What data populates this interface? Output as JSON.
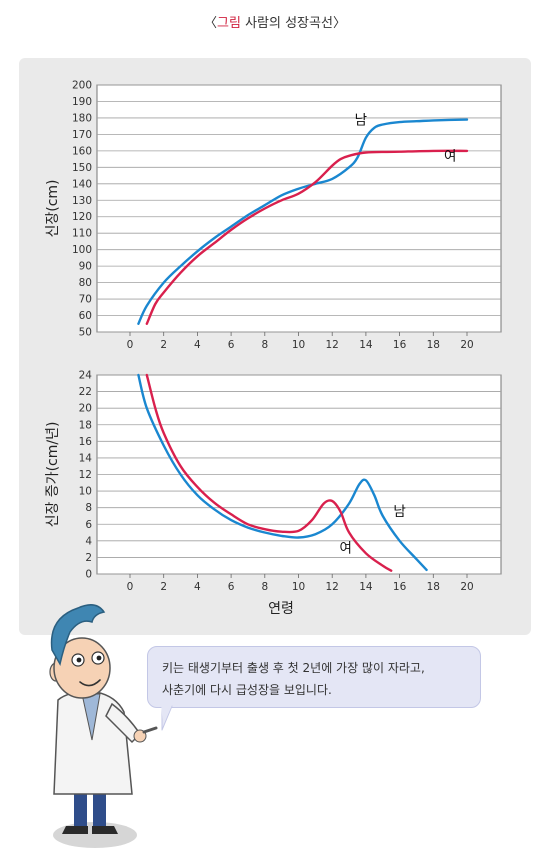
{
  "caption": {
    "bracket_open": "〈",
    "highlight": "그림",
    "rest": " 사람의 성장곡선",
    "bracket_close": "〉"
  },
  "speech": {
    "line1": "키는 태생기부터 출생 후 첫 2년에 가장 많이 자라고,",
    "line2": "사춘기에 다시 급성장을 보입니다."
  },
  "colors": {
    "male": "#1a87d0",
    "female": "#d9204d",
    "panel": "#eaeaea",
    "grid": "#a0a0a0"
  },
  "chart_data": [
    {
      "type": "line",
      "ylabel": "신장(cm)",
      "xlabel": "",
      "xlim": [
        0,
        20
      ],
      "ylim": [
        50,
        200
      ],
      "xticks": [
        0,
        2,
        4,
        6,
        8,
        10,
        12,
        14,
        16,
        18,
        20
      ],
      "yticks": [
        50,
        60,
        70,
        80,
        90,
        100,
        110,
        120,
        130,
        140,
        150,
        160,
        170,
        180,
        190,
        200
      ],
      "grid": true,
      "series": [
        {
          "name": "남",
          "color": "#1a87d0",
          "points": [
            [
              0.5,
              55
            ],
            [
              1,
              66
            ],
            [
              2,
              80
            ],
            [
              3,
              90
            ],
            [
              4,
              99
            ],
            [
              5,
              107
            ],
            [
              6,
              114
            ],
            [
              7,
              121
            ],
            [
              8,
              127
            ],
            [
              9,
              133
            ],
            [
              10,
              137
            ],
            [
              11,
              140
            ],
            [
              12,
              143
            ],
            [
              13,
              150
            ],
            [
              13.5,
              156
            ],
            [
              14,
              168
            ],
            [
              14.5,
              174
            ],
            [
              15,
              176
            ],
            [
              16,
              177.5
            ],
            [
              17,
              178
            ],
            [
              18,
              178.5
            ],
            [
              20,
              179
            ]
          ]
        },
        {
          "name": "여",
          "color": "#d9204d",
          "points": [
            [
              1,
              55
            ],
            [
              1.5,
              67
            ],
            [
              2,
              74
            ],
            [
              3,
              86
            ],
            [
              4,
              96
            ],
            [
              5,
              104
            ],
            [
              6,
              112
            ],
            [
              7,
              119
            ],
            [
              8,
              125
            ],
            [
              9,
              130
            ],
            [
              10,
              134
            ],
            [
              11,
              141
            ],
            [
              12,
              151
            ],
            [
              12.5,
              155
            ],
            [
              13,
              157
            ],
            [
              14,
              159
            ],
            [
              16,
              159.5
            ],
            [
              18,
              160
            ],
            [
              20,
              160
            ]
          ]
        }
      ]
    },
    {
      "type": "line",
      "ylabel": "신장 증가(cm/년)",
      "xlabel": "연령",
      "xlim": [
        0,
        20
      ],
      "ylim": [
        0,
        24
      ],
      "xticks": [
        0,
        2,
        4,
        6,
        8,
        10,
        12,
        14,
        16,
        18,
        20
      ],
      "yticks": [
        0,
        2,
        4,
        6,
        8,
        10,
        12,
        14,
        16,
        18,
        20,
        22,
        24
      ],
      "grid": true,
      "series": [
        {
          "name": "남",
          "color": "#1a87d0",
          "points": [
            [
              0.5,
              24
            ],
            [
              1,
              20
            ],
            [
              2,
              15.5
            ],
            [
              3,
              12
            ],
            [
              4,
              9.5
            ],
            [
              5,
              7.8
            ],
            [
              6,
              6.5
            ],
            [
              7,
              5.6
            ],
            [
              8,
              5
            ],
            [
              9,
              4.6
            ],
            [
              10,
              4.4
            ],
            [
              11,
              4.8
            ],
            [
              12,
              6
            ],
            [
              13,
              8.5
            ],
            [
              13.6,
              10.8
            ],
            [
              14,
              11.3
            ],
            [
              14.5,
              9.5
            ],
            [
              15,
              7
            ],
            [
              16,
              4
            ],
            [
              17,
              1.8
            ],
            [
              17.6,
              0.5
            ]
          ]
        },
        {
          "name": "여",
          "color": "#d9204d",
          "points": [
            [
              1,
              24
            ],
            [
              1.5,
              20
            ],
            [
              2,
              17
            ],
            [
              3,
              13
            ],
            [
              4,
              10.5
            ],
            [
              5,
              8.6
            ],
            [
              6,
              7.2
            ],
            [
              7,
              6
            ],
            [
              8,
              5.4
            ],
            [
              9,
              5.1
            ],
            [
              10,
              5.2
            ],
            [
              10.8,
              6.5
            ],
            [
              11.5,
              8.5
            ],
            [
              12,
              8.8
            ],
            [
              12.5,
              7.5
            ],
            [
              13,
              5
            ],
            [
              14,
              2.5
            ],
            [
              15,
              1
            ],
            [
              15.5,
              0.4
            ]
          ]
        }
      ]
    }
  ]
}
